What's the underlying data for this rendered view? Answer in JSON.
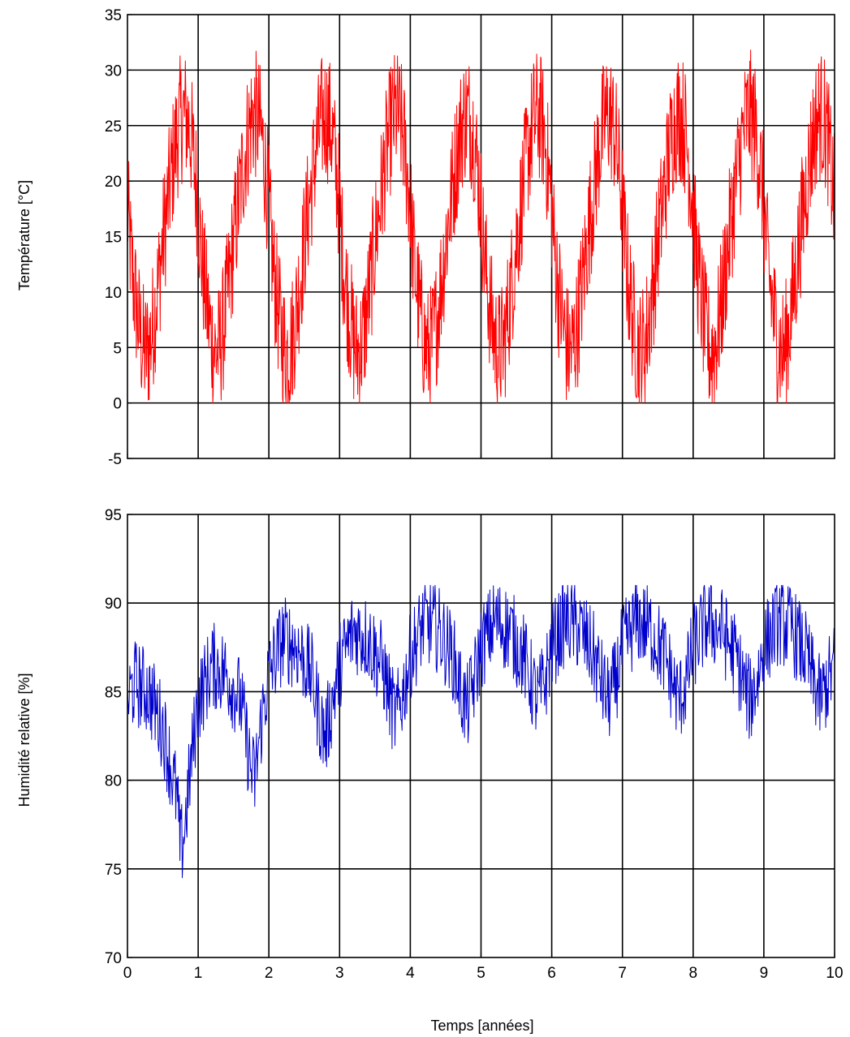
{
  "chart_data": [
    {
      "type": "line",
      "xlabel": "",
      "ylabel": "Température [°C]",
      "xlim": [
        0,
        10
      ],
      "ylim": [
        -5,
        35
      ],
      "xticks": [
        0,
        1,
        2,
        3,
        4,
        5,
        6,
        7,
        8,
        9,
        10
      ],
      "yticks": [
        -5,
        0,
        5,
        10,
        15,
        20,
        25,
        30,
        35
      ],
      "x_tick_labels_shown": false,
      "grid": true,
      "series": [
        {
          "color": "#ff0000",
          "x": [
            0.0,
            0.05,
            0.1,
            0.15,
            0.2,
            0.25,
            0.3,
            0.35,
            0.4,
            0.45,
            0.5,
            0.55,
            0.6,
            0.65,
            0.7,
            0.75,
            0.8,
            0.85,
            0.9,
            0.95,
            1.0
          ],
          "y": [
            17.5,
            13.0,
            10.0,
            7.5,
            5.5,
            4.5,
            5.0,
            6.5,
            9.0,
            11.5,
            14.5,
            17.0,
            19.5,
            22.0,
            24.0,
            25.5,
            26.0,
            25.5,
            24.0,
            21.0,
            18.0
          ],
          "period_years": 1,
          "noise_amplitude": 6,
          "y_min_observed": 0,
          "y_max_observed": 32
        }
      ]
    },
    {
      "type": "line",
      "xlabel": "Temps [années]",
      "ylabel": "Humidité relative [%]",
      "xlim": [
        0,
        10
      ],
      "ylim": [
        70,
        95
      ],
      "xticks": [
        0,
        1,
        2,
        3,
        4,
        5,
        6,
        7,
        8,
        9,
        10
      ],
      "yticks": [
        70,
        75,
        80,
        85,
        90,
        95
      ],
      "grid": true,
      "series": [
        {
          "color": "#0000cc",
          "x": [
            0,
            0.1,
            0.3,
            0.5,
            0.7,
            0.75,
            0.8,
            0.9,
            1.0,
            1.2,
            1.4,
            1.6,
            1.75,
            1.8,
            1.9,
            2.0,
            2.2,
            2.4,
            2.6,
            2.75,
            2.8,
            2.9,
            3.0,
            3.2,
            3.4,
            3.6,
            3.75,
            3.8,
            3.9,
            4.0,
            4.2,
            4.4,
            4.6,
            4.75,
            4.8,
            4.9,
            5.0,
            5.2,
            5.4,
            5.6,
            5.75,
            5.8,
            5.9,
            6.0,
            6.2,
            6.4,
            6.6,
            6.75,
            6.8,
            6.9,
            7.0,
            7.2,
            7.4,
            7.6,
            7.75,
            7.8,
            7.9,
            8.0,
            8.2,
            8.4,
            8.6,
            8.75,
            8.8,
            8.9,
            9.0,
            9.2,
            9.4,
            9.6,
            9.75,
            9.8,
            9.9,
            10.0
          ],
          "y": [
            84.5,
            85.5,
            85.0,
            83.0,
            79.0,
            76.0,
            77.0,
            81.0,
            84.5,
            86.5,
            86.0,
            84.5,
            80.5,
            80.0,
            83.5,
            86.0,
            88.0,
            87.5,
            86.0,
            83.0,
            82.5,
            84.5,
            86.5,
            88.5,
            88.0,
            86.5,
            84.0,
            83.5,
            85.0,
            87.0,
            89.0,
            88.5,
            87.0,
            84.5,
            84.0,
            85.5,
            87.5,
            89.0,
            88.5,
            87.0,
            85.0,
            84.5,
            85.5,
            87.5,
            89.0,
            88.5,
            87.0,
            85.0,
            84.5,
            85.5,
            87.5,
            89.0,
            88.5,
            87.0,
            85.0,
            84.5,
            85.5,
            87.5,
            89.0,
            88.5,
            87.0,
            85.0,
            84.5,
            85.5,
            87.5,
            89.0,
            88.5,
            87.0,
            85.0,
            84.5,
            85.5,
            86.5
          ],
          "noise_amplitude": 2.5,
          "y_min_observed": 71.5,
          "y_max_observed": 91
        }
      ]
    }
  ]
}
